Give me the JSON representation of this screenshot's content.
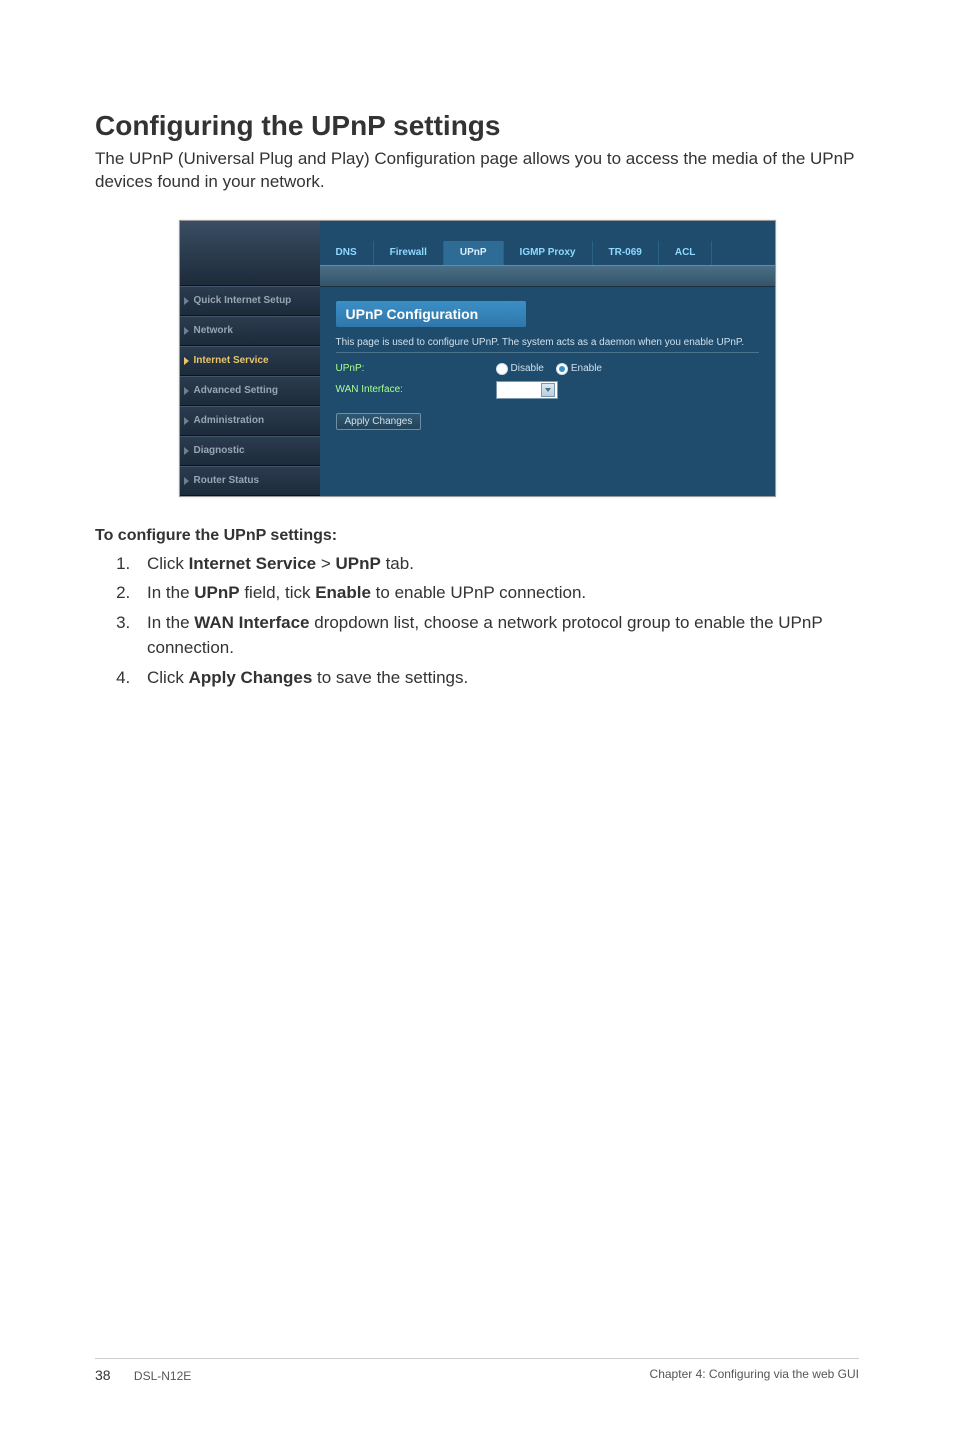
{
  "heading": "Configuring the UPnP settings",
  "intro": "The UPnP (Universal Plug and Play) Configuration page allows you to access the media of the UPnP devices found in your network.",
  "screenshot": {
    "sidebar": {
      "items": [
        {
          "label": "Quick Internet Setup",
          "active": false
        },
        {
          "label": "Network",
          "active": false
        },
        {
          "label": "Internet Service",
          "active": true
        },
        {
          "label": "Advanced Setting",
          "active": false
        },
        {
          "label": "Administration",
          "active": false
        },
        {
          "label": "Diagnostic",
          "active": false
        },
        {
          "label": "Router Status",
          "active": false
        }
      ]
    },
    "tabs": [
      {
        "label": "DNS",
        "active": false
      },
      {
        "label": "Firewall",
        "active": false
      },
      {
        "label": "UPnP",
        "active": true
      },
      {
        "label": "IGMP Proxy",
        "active": false
      },
      {
        "label": "TR-069",
        "active": false
      },
      {
        "label": "ACL",
        "active": false
      }
    ],
    "panel_title": "UPnP Configuration",
    "description": "This page is used to configure UPnP. The system acts as a daemon when you enable UPnP.",
    "fields": {
      "upnp_label": "UPnP:",
      "disable_label": "Disable",
      "enable_label": "Enable",
      "enable_selected": true,
      "wan_label": "WAN Interface:"
    },
    "apply_button": "Apply Changes",
    "colors": {
      "sidebar_bg": "#1d2b3a",
      "content_bg": "#1f4c6c",
      "tab_active_bg": "#2f6c95",
      "panel_title_bg": "#3a8fc7",
      "field_label_color": "#a7ff8c",
      "active_item_color": "#eac56a"
    }
  },
  "instructions": {
    "title": "To configure the UPnP settings:",
    "steps": {
      "s1_a": "Click ",
      "s1_b": "Internet Service",
      "s1_c": " > ",
      "s1_d": "UPnP",
      "s1_e": " tab.",
      "s2_a": "In the ",
      "s2_b": "UPnP",
      "s2_c": " field, tick ",
      "s2_d": "Enable",
      "s2_e": " to enable UPnP connection.",
      "s3_a": "In the ",
      "s3_b": "WAN Interface",
      "s3_c": " dropdown list, choose a network protocol group to enable the UPnP connection.",
      "s4_a": "Click ",
      "s4_b": "Apply Changes",
      "s4_c": " to save the settings."
    }
  },
  "footer": {
    "page_num": "38",
    "model": "DSL-N12E",
    "chapter": "Chapter 4: Configuring via the web GUI"
  }
}
